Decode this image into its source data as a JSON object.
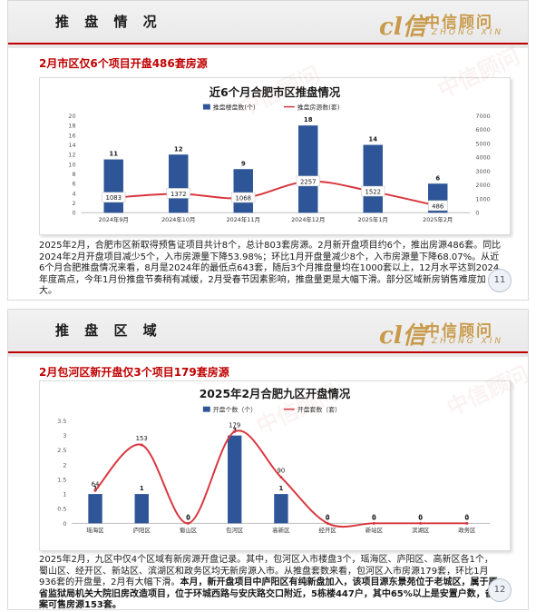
{
  "slides": [
    {
      "section_title": "推 盘 情 况",
      "logo": {
        "mark": "cl信",
        "cn": "中信顾问",
        "en": "ZHONG XIN"
      },
      "subhead": "2月市区仅6个项目开盘486套房源",
      "paragraph": "2025年2月，合肥市区新取得预售证项目共计8个，总计803套房源。2月新开盘项目约6个，推出房源486套。同比2024年2月开盘项目减少5个，入市房源量下降53.98%；环比1月开盘量减少8个，入市房源量下降68.07%。从近6个月合肥推盘情况来看，8月是2024年的最低点643套，随后3个月推盘量均在1000套以上，12月水平达到2024年度高点，今年1月份推盘节奏稍有减缓，2月受春节因素影响，推盘量更是大幅下滑。部分区域新房销售难度加大。",
      "page": "11"
    },
    {
      "section_title": "推 盘 区 域",
      "logo": {
        "mark": "cl信",
        "cn": "中信顾问",
        "en": "ZHONG XIN"
      },
      "subhead": "2月包河区新开盘仅3个项目179套房源",
      "paragraph_plain": "2025年2月，九区中仅4个区域有新房源开盘记录。其中，包河区入市楼盘3个，瑶海区、庐阳区、高新区各1个，蜀山区、经开区、新站区、滨湖区和政务区均无新房源入市。从推盘套数来看，包河区入市房源179套，环比1月936套的开盘量，2月有大幅下滑。",
      "paragraph_bold": "本月，新开盘项目中庐阳区有纯新盘加入，该项目源东景苑位于老城区，属于原省监狱局机关大院旧房改造项目，位于环城西路与安庆路交口附近，5栋楼447户，其中65%以上是安置户数，备案可售房源153套。",
      "page": "12"
    }
  ],
  "chart_data": [
    {
      "type": "bar",
      "title": "近6个月合肥市区推盘情况",
      "categories": [
        "2024年9月",
        "2024年10月",
        "2024年11月",
        "2024年12月",
        "2025年1月",
        "2025年2月"
      ],
      "series": [
        {
          "name": "推盘楼盘数(个)",
          "type": "bar",
          "axis": "left",
          "values": [
            11,
            12,
            9,
            18,
            14,
            6
          ]
        },
        {
          "name": "推盘房源数(套)",
          "type": "line",
          "axis": "right",
          "values": [
            1083,
            1372,
            1068,
            2257,
            1522,
            486
          ]
        }
      ],
      "ylim_left": [
        0,
        20
      ],
      "yticks_left": [
        0,
        2,
        4,
        6,
        8,
        10,
        12,
        14,
        16,
        18,
        20
      ],
      "ylim_right": [
        0,
        7000
      ],
      "yticks_right": [
        0,
        1000,
        2000,
        3000,
        4000,
        5000,
        6000,
        7000
      ],
      "legend": "top-center",
      "colors": {
        "bar": "#2e5597",
        "line": "#d9363e",
        "label_bg": "#ffffff"
      }
    },
    {
      "type": "bar",
      "title": "2025年2月合肥九区开盘情况",
      "categories": [
        "瑶海区",
        "庐阳区",
        "蜀山区",
        "包河区",
        "高新区",
        "经开区",
        "新站区",
        "滨湖区",
        "政务区"
      ],
      "series": [
        {
          "name": "开盘个数（个）",
          "type": "bar",
          "axis": "left",
          "values": [
            1,
            1,
            0,
            3,
            1,
            0,
            0,
            0,
            0
          ]
        },
        {
          "name": "开盘套数（套）",
          "type": "line",
          "axis": "right",
          "values": [
            64,
            153,
            0,
            179,
            90,
            0,
            0,
            0,
            0
          ]
        }
      ],
      "ylim_left": [
        0,
        3.5
      ],
      "yticks_left": [
        0,
        0.5,
        1,
        1.5,
        2,
        2.5,
        3,
        3.5
      ],
      "ylim_right": [
        0,
        200
      ],
      "legend": "top-center",
      "colors": {
        "bar": "#2e5597",
        "line": "#d9363e"
      }
    }
  ]
}
